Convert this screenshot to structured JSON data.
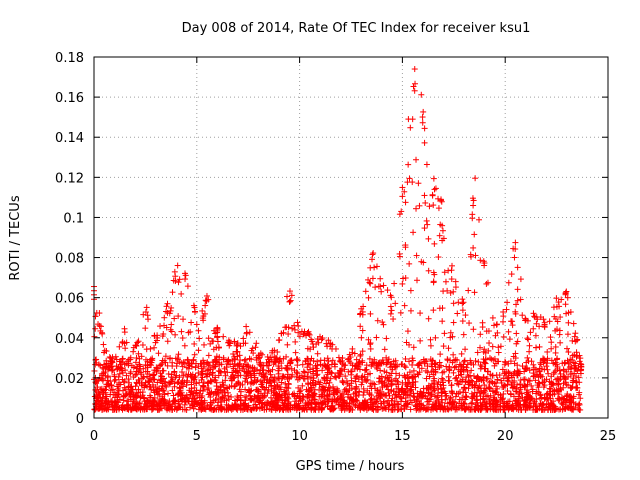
{
  "chart_data": {
    "type": "scatter",
    "title": "Day 008 of 2014, Rate Of TEC Index for receiver ksu1",
    "xlabel": "GPS time / hours",
    "ylabel": "ROTI / TECUs",
    "xlim": [
      0,
      25
    ],
    "ylim": [
      0,
      0.18
    ],
    "xticks": [
      0,
      5,
      10,
      15,
      20,
      25
    ],
    "yticks": [
      0,
      0.02,
      0.04,
      0.06,
      0.08,
      0.1,
      0.12,
      0.14,
      0.16,
      0.18
    ],
    "xtick_labels": [
      "0",
      "5",
      "10",
      "15",
      "20",
      "25"
    ],
    "ytick_labels": [
      "0",
      "0.02",
      "0.04",
      "0.06",
      "0.08",
      "0.1",
      "0.12",
      "0.14",
      "0.16",
      "0.18"
    ],
    "grid": true,
    "marker": "+",
    "color": "#ff0000",
    "series": [
      {
        "name": "ROTI",
        "envelope_hours": [
          0,
          0.25,
          0.5,
          1,
          1.5,
          2,
          2.5,
          3,
          3.5,
          4,
          4.5,
          5,
          5.5,
          6,
          6.5,
          7,
          7.5,
          8,
          8.5,
          9,
          9.5,
          10,
          10.5,
          11,
          11.5,
          12,
          12.5,
          13,
          13.5,
          14,
          14.5,
          15,
          15.5,
          16,
          16.5,
          17,
          17.5,
          18,
          18.5,
          19,
          19.5,
          20,
          20.5,
          21,
          21.5,
          22,
          22.5,
          23,
          23.5,
          23.7
        ],
        "envelope_max": [
          0.067,
          0.055,
          0.035,
          0.03,
          0.045,
          0.036,
          0.06,
          0.04,
          0.055,
          0.078,
          0.075,
          0.05,
          0.063,
          0.045,
          0.04,
          0.038,
          0.05,
          0.035,
          0.03,
          0.04,
          0.068,
          0.045,
          0.045,
          0.042,
          0.04,
          0.03,
          0.032,
          0.055,
          0.088,
          0.07,
          0.06,
          0.12,
          0.174,
          0.16,
          0.124,
          0.105,
          0.07,
          0.06,
          0.124,
          0.08,
          0.045,
          0.055,
          0.096,
          0.05,
          0.055,
          0.05,
          0.06,
          0.065,
          0.04,
          0.03
        ],
        "typical_min": 0.004,
        "typical_center": 0.014,
        "peak_value": 0.174,
        "peak_hour": 15.6
      }
    ]
  }
}
